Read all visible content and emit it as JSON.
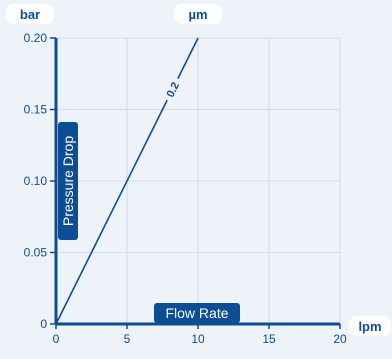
{
  "chart_data": {
    "type": "line",
    "y_unit_label": "bar",
    "x_unit_label": "lpm",
    "series_header": "µm",
    "xlabel": "Flow Rate",
    "ylabel": "Pressure Drop",
    "xlim": [
      0,
      20
    ],
    "ylim": [
      0,
      0.2
    ],
    "x_ticks": [
      0,
      5,
      10,
      15,
      20
    ],
    "x_tick_labels": [
      "0",
      "5",
      "10",
      "15",
      "20"
    ],
    "y_ticks": [
      0,
      0.05,
      0.1,
      0.15,
      0.2
    ],
    "y_tick_labels": [
      "0",
      "0.05",
      "0.10",
      "0.15",
      "0.20"
    ],
    "grid": true,
    "series": [
      {
        "name": "0.2",
        "x": [
          0,
          10
        ],
        "y": [
          0,
          0.2
        ]
      }
    ]
  },
  "colors": {
    "background": "#eef3fa",
    "axis": "#0d4d94",
    "grid": "#c9d5e6",
    "line": "#0d4d94",
    "label_text": "#ffffff"
  }
}
